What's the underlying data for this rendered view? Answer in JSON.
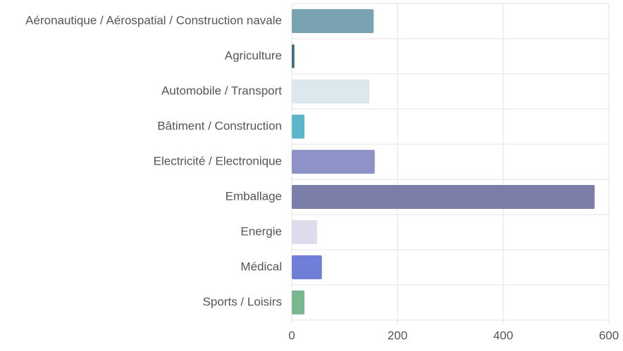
{
  "chart_data": {
    "type": "barh",
    "categories": [
      "Aéronautique / Aérospatial / Construction navale",
      "Agriculture",
      "Automobile / Transport",
      "Bâtiment / Construction",
      "Electricité / Electronique",
      "Emballage",
      "Energie",
      "Médical",
      "Sports / Loisirs"
    ],
    "values": [
      155,
      5,
      147,
      24,
      157,
      573,
      48,
      57,
      24
    ],
    "colors": [
      "#7aa3b1",
      "#3e6e7c",
      "#dce8ee",
      "#5cb5ca",
      "#8e93c7",
      "#7a7ea8",
      "#dcdcee",
      "#6f7ed6",
      "#7ab78f"
    ],
    "xlim": [
      0,
      600
    ],
    "xticks": [
      0,
      200,
      400,
      600
    ],
    "grid": true
  }
}
